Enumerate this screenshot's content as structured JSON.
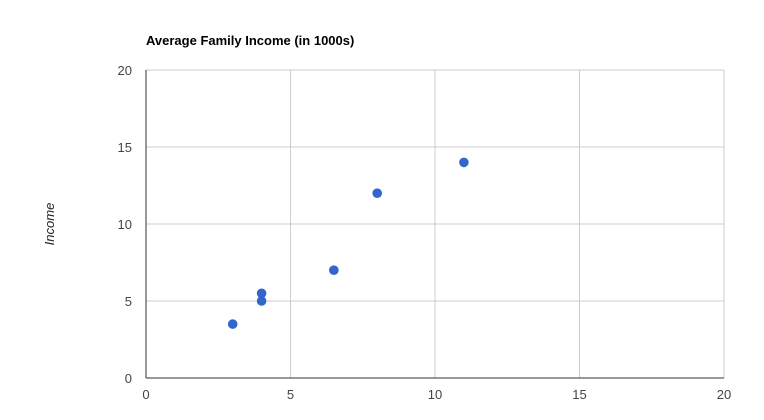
{
  "chart_data": {
    "type": "scatter",
    "title": "Average Family Income (in 1000s)",
    "xlabel": "",
    "ylabel": "Income",
    "xlim": [
      0,
      20
    ],
    "ylim": [
      0,
      20
    ],
    "x_ticks": [
      "0",
      "5",
      "10",
      "15",
      "20"
    ],
    "y_ticks": [
      "0",
      "5",
      "10",
      "15",
      "20"
    ],
    "grid": true,
    "legend": "none",
    "series": [
      {
        "color": "#3366cc",
        "points": [
          {
            "x": 3,
            "y": 3.5
          },
          {
            "x": 4,
            "y": 5
          },
          {
            "x": 4,
            "y": 5.5
          },
          {
            "x": 6.5,
            "y": 7
          },
          {
            "x": 8,
            "y": 12
          },
          {
            "x": 11,
            "y": 14
          }
        ]
      }
    ]
  }
}
